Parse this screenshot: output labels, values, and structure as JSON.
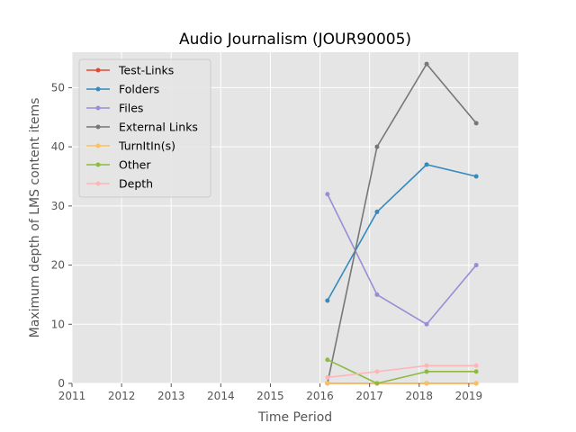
{
  "chart_data": {
    "type": "line",
    "title": "Audio Journalism (JOUR90005)",
    "xlabel": "Time Period",
    "ylabel": "Maximum depth of LMS content items",
    "xlim": [
      2011,
      2020
    ],
    "ylim": [
      0,
      56
    ],
    "xticks": [
      "2011",
      "2012",
      "2013",
      "2014",
      "2015",
      "2016",
      "2017",
      "2018",
      "2019"
    ],
    "yticks": [
      "0",
      "10",
      "20",
      "30",
      "40",
      "50"
    ],
    "grid": true,
    "legend_position": "top-left",
    "x": [
      2016.15,
      2017.15,
      2018.15,
      2019.15
    ],
    "series": [
      {
        "name": "Test-Links",
        "color": "#E24A33",
        "values": [
          0,
          0,
          0,
          0
        ]
      },
      {
        "name": "Folders",
        "color": "#348ABD",
        "values": [
          14,
          29,
          37,
          35
        ]
      },
      {
        "name": "Files",
        "color": "#988ED5",
        "values": [
          32,
          15,
          10,
          20
        ]
      },
      {
        "name": "External Links",
        "color": "#777777",
        "values": [
          0,
          40,
          54,
          44
        ]
      },
      {
        "name": "TurnItIn(s)",
        "color": "#FBC15E",
        "values": [
          0,
          0,
          0,
          0
        ]
      },
      {
        "name": "Other",
        "color": "#8EBA42",
        "values": [
          4,
          0,
          2,
          2
        ]
      },
      {
        "name": "Depth",
        "color": "#FFB5B8",
        "values": [
          1,
          2,
          3,
          3
        ]
      }
    ],
    "background_color": "#E5E5E5",
    "grid_color": "#FFFFFF"
  }
}
